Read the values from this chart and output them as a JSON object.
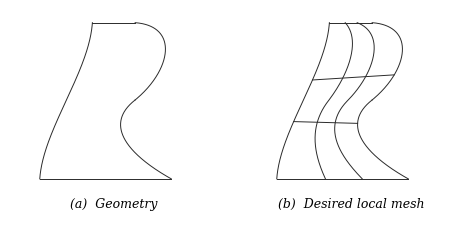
{
  "fig_width": 4.74,
  "fig_height": 2.38,
  "dpi": 100,
  "bg_color": "#ffffff",
  "line_color": "#2a2a2a",
  "line_width": 0.7,
  "label_a": "(a)  Geometry",
  "label_b": "(b)  Desired local mesh",
  "label_fontsize": 9
}
